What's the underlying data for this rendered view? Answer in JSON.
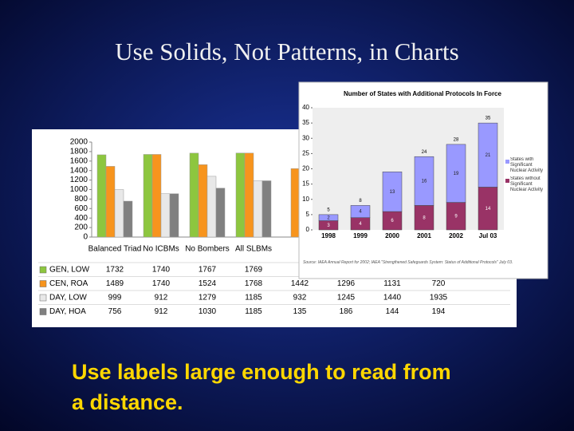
{
  "title": "Use Solids, Not Patterns, in Charts",
  "body_text": [
    "Use labels large enough to read from",
    "a distance."
  ],
  "chart_data": [
    {
      "type": "grouped-bar-table",
      "categories": [
        "Balanced Triad",
        "No ICBMs",
        "No Bombers",
        "All SLBMs",
        null,
        null,
        null,
        null
      ],
      "series": [
        {
          "name": "GEN, LOW",
          "color": "#8dc63f",
          "values": [
            1732,
            1740,
            1767,
            1769,
            null,
            null,
            null,
            null
          ]
        },
        {
          "name": "CEN, ROA",
          "color": "#f7941d",
          "values": [
            1489,
            1740,
            1524,
            1768,
            1442,
            1296,
            1131,
            720
          ]
        },
        {
          "name": "DAY, LOW",
          "color": "#e8e8e8",
          "values": [
            999,
            912,
            1279,
            1185,
            932,
            1245,
            1440,
            1935
          ]
        },
        {
          "name": "DAY, HOA",
          "color": "#808080",
          "values": [
            756,
            912,
            1030,
            1185,
            135,
            186,
            144,
            194
          ]
        }
      ],
      "ylim": [
        0,
        2000
      ],
      "yticks": [
        0,
        200,
        400,
        600,
        800,
        1000,
        1200,
        1400,
        1600,
        1800,
        2000
      ]
    },
    {
      "type": "stacked-bar",
      "title": "Number of States with Additional Protocols In Force",
      "categories": [
        "1998",
        "1999",
        "2000",
        "2001",
        "2002",
        "Jul 03"
      ],
      "series": [
        {
          "name": "States without Significant Nuclear Activity",
          "color": "#993366",
          "values": [
            3,
            4,
            6,
            8,
            9,
            14
          ]
        },
        {
          "name": "States with Significant Nuclear Activity",
          "color": "#9999ff",
          "values": [
            2,
            4,
            13,
            16,
            19,
            21
          ]
        }
      ],
      "totals": [
        5,
        8,
        null,
        24,
        28,
        35
      ],
      "ylim": [
        0,
        40
      ],
      "yticks": [
        0,
        5,
        10,
        15,
        20,
        25,
        30,
        35,
        40
      ],
      "note": "Source: IAEA Annual Report for 2002; IAEA \"Strengthened Safeguards System: Status of Additional Protocols\" July 03."
    }
  ]
}
